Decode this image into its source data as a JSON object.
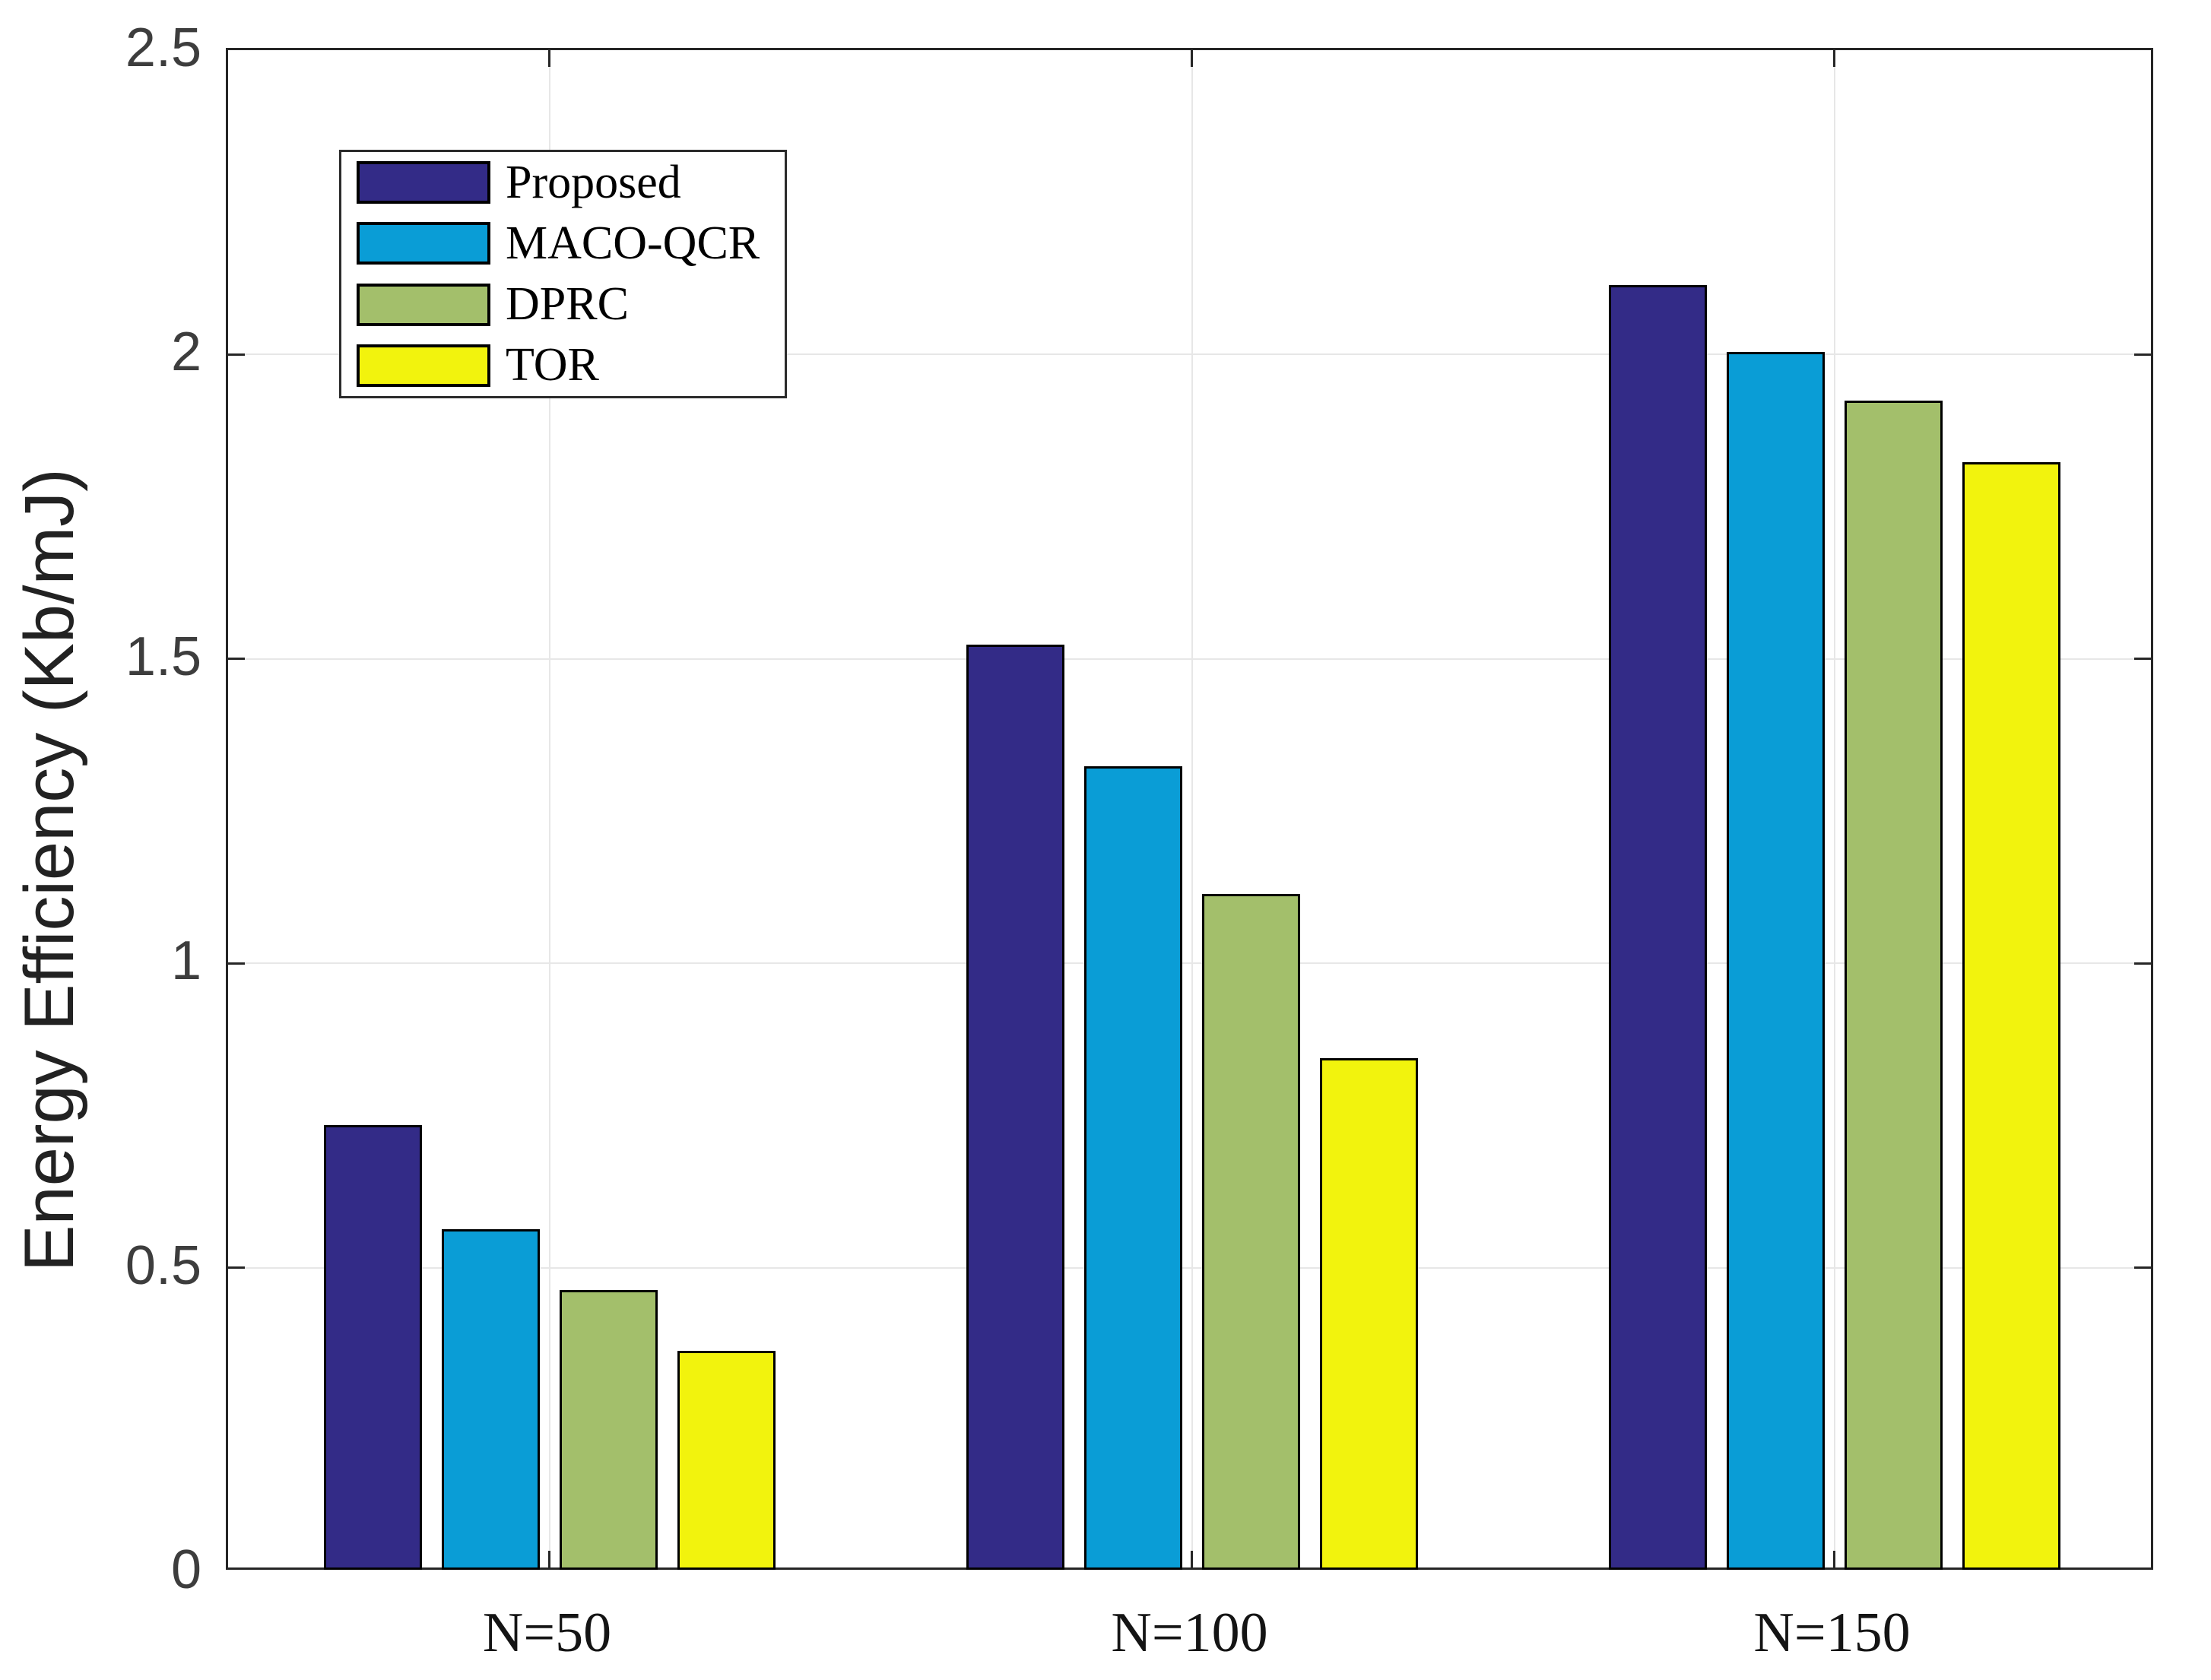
{
  "chart_data": {
    "type": "bar",
    "title": "",
    "xlabel": "",
    "ylabel": "Energy Efficiency (Kb/mJ)",
    "categories": [
      "N=50",
      "N=100",
      "N=150"
    ],
    "series": [
      {
        "name": "Proposed",
        "color": "#332B87",
        "values": [
          0.73,
          1.52,
          2.11
        ]
      },
      {
        "name": "MACO-QCR",
        "color": "#0A9DD6",
        "values": [
          0.56,
          1.32,
          2.0
        ]
      },
      {
        "name": "DPRC",
        "color": "#A3BF6B",
        "values": [
          0.46,
          1.11,
          1.92
        ]
      },
      {
        "name": "TOR",
        "color": "#F2F30D",
        "values": [
          0.36,
          0.84,
          1.82
        ]
      }
    ],
    "ylim": [
      0,
      2.5
    ],
    "yticks": [
      0,
      0.5,
      1,
      1.5,
      2,
      2.5
    ],
    "ytick_labels": [
      "0",
      "0.5",
      "1",
      "1.5",
      "2",
      "2.5"
    ],
    "grid": true,
    "legend_position": "top-left-inside",
    "axis_color": "#262626",
    "grid_color": "#E7E7E7",
    "bar_edge_color": "#000000"
  }
}
